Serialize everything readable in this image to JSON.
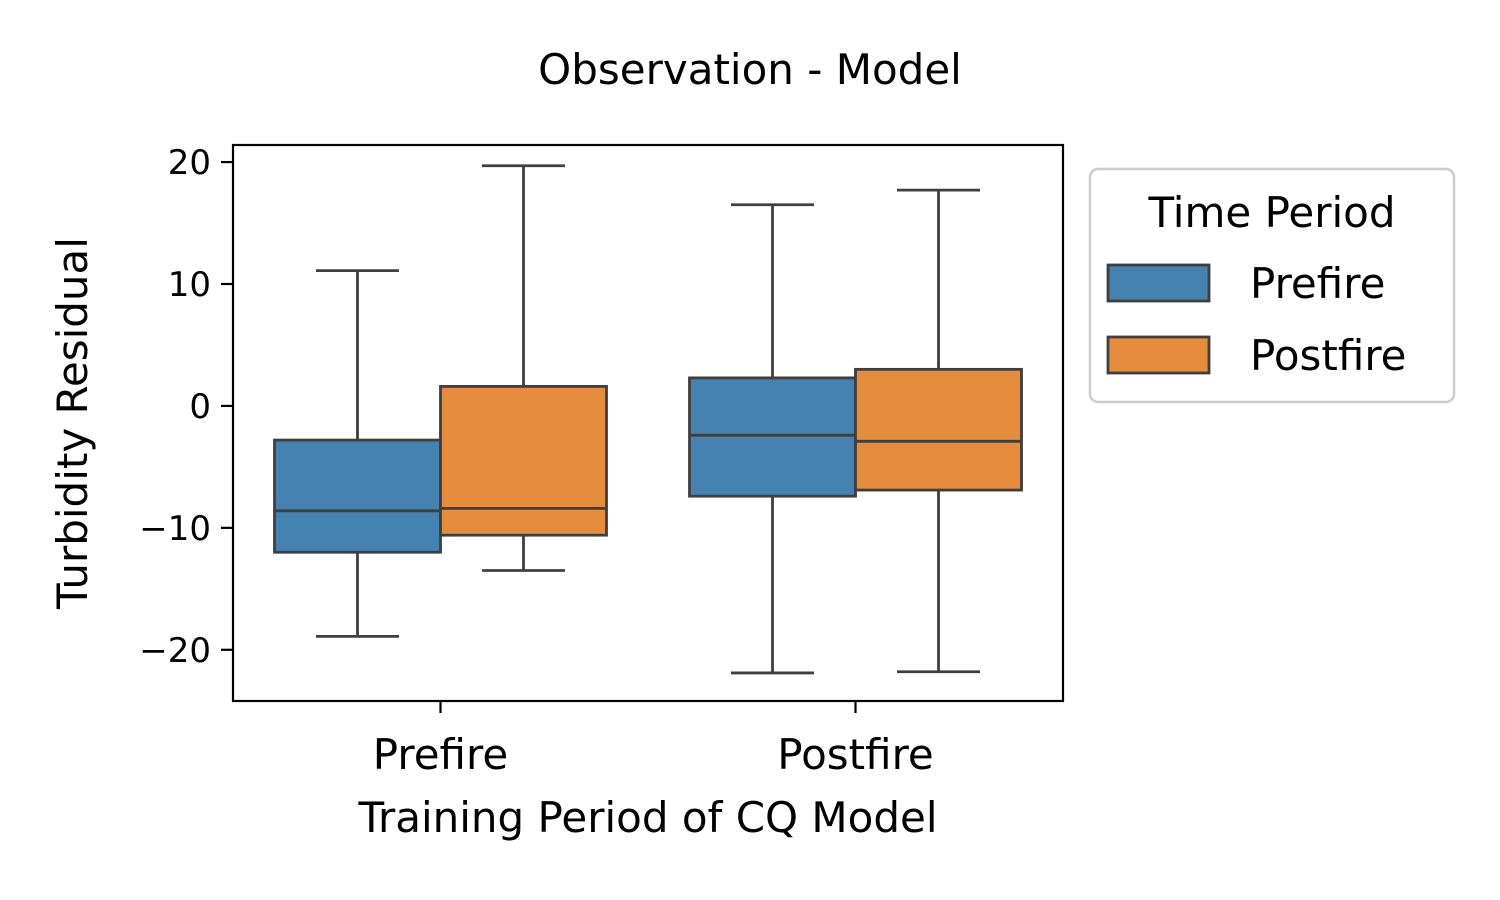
{
  "chart_data": {
    "type": "box",
    "title": "Observation - Model",
    "xlabel": "Training Period of CQ Model",
    "ylabel": "Turbidity Residual",
    "categories": [
      "Prefire",
      "Postfire"
    ],
    "ylim": [
      -24.2,
      21.4
    ],
    "yticks": [
      20,
      10,
      0,
      -10,
      -20
    ],
    "ytick_labels": [
      "20",
      "10",
      "0",
      "−10",
      "−20"
    ],
    "grid": false,
    "legend": {
      "title": "Time Period",
      "placement": "outside-right-top"
    },
    "series": [
      {
        "name": "Prefire",
        "color": "#4682b0",
        "boxes": [
          {
            "whisker_low": -18.9,
            "q1": -12.0,
            "median": -8.6,
            "q3": -2.8,
            "whisker_high": 11.1
          },
          {
            "whisker_low": -21.9,
            "q1": -7.4,
            "median": -2.4,
            "q3": 2.3,
            "whisker_high": 16.5
          }
        ]
      },
      {
        "name": "Postfire",
        "color": "#e68c3d",
        "boxes": [
          {
            "whisker_low": -13.5,
            "q1": -10.6,
            "median": -8.4,
            "q3": 1.6,
            "whisker_high": 19.7
          },
          {
            "whisker_low": -21.8,
            "q1": -6.9,
            "median": -2.9,
            "q3": 3.0,
            "whisker_high": 17.7
          }
        ]
      }
    ]
  }
}
